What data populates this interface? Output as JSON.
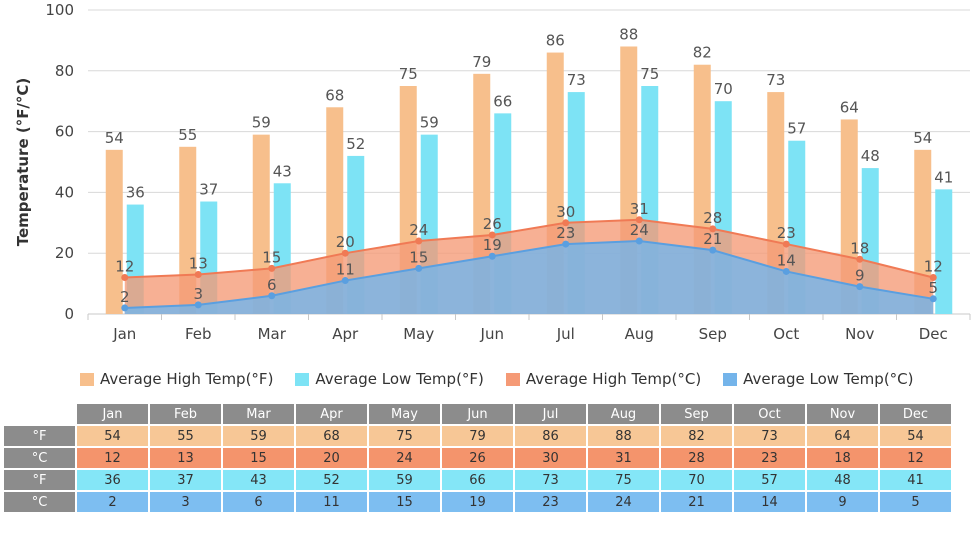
{
  "chart_data": {
    "type": "bar",
    "categories": [
      "Jan",
      "Feb",
      "Mar",
      "Apr",
      "May",
      "Jun",
      "Jul",
      "Aug",
      "Sep",
      "Oct",
      "Nov",
      "Dec"
    ],
    "ylabel": "Temperature (°F/°C)",
    "ylim": [
      0,
      100
    ],
    "yticks": [
      "0",
      "20",
      "40",
      "60",
      "80",
      "100"
    ],
    "grid": true,
    "legend_position": "bottom",
    "series": [
      {
        "name": "Average High Temp(°F)",
        "kind": "bar",
        "color": "#f7bf8c",
        "values": [
          54,
          55,
          59,
          68,
          75,
          79,
          86,
          88,
          82,
          73,
          64,
          54
        ]
      },
      {
        "name": "Average Low Temp(°F)",
        "kind": "bar",
        "color": "#7de3f5",
        "values": [
          36,
          37,
          43,
          52,
          59,
          66,
          73,
          75,
          70,
          57,
          48,
          41
        ]
      },
      {
        "name": "Average High Temp(°C)",
        "kind": "area",
        "color": "#f59a76",
        "values": [
          12,
          13,
          15,
          20,
          24,
          26,
          30,
          31,
          28,
          23,
          18,
          12
        ]
      },
      {
        "name": "Average Low Temp(°C)",
        "kind": "area",
        "color": "#74b4ea",
        "values": [
          2,
          3,
          6,
          11,
          15,
          19,
          23,
          24,
          21,
          14,
          9,
          5
        ]
      }
    ]
  },
  "table": {
    "rows": [
      {
        "label": "°F",
        "color": "#f7c796"
      },
      {
        "label": "°C",
        "color": "#f4946c"
      },
      {
        "label": "°F",
        "color": "#84e6f7"
      },
      {
        "label": "°C",
        "color": "#7dbef1"
      }
    ]
  }
}
